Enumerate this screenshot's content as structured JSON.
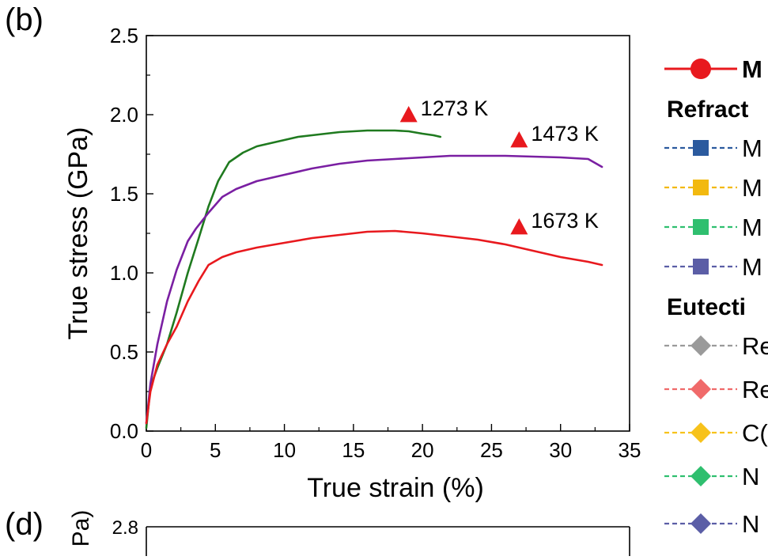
{
  "panel_b_label": "(b)",
  "panel_d_label": "(d)",
  "left_edge_tick": "0",
  "chart_data": {
    "type": "line",
    "title": "",
    "xlabel": "True strain (%)",
    "ylabel": "True stress (GPa)",
    "xlim": [
      0,
      35
    ],
    "ylim": [
      0,
      2.5
    ],
    "x_ticks": [
      "0",
      "5",
      "10",
      "15",
      "20",
      "25",
      "30",
      "35"
    ],
    "y_ticks": [
      "0.0",
      "0.5",
      "1.0",
      "1.5",
      "2.0",
      "2.5"
    ],
    "grid": false,
    "series": [
      {
        "name": "1273 K",
        "color": "#1f7a1f",
        "x": [
          0,
          0.3,
          0.8,
          1.5,
          2.2,
          3.0,
          3.8,
          4.5,
          5.2,
          6.0,
          7.0,
          8.0,
          9.0,
          10.0,
          11.0,
          12.0,
          13.0,
          14.0,
          15.0,
          16.0,
          17.0,
          18.0,
          19.0,
          20.0,
          20.8,
          21.3
        ],
        "y": [
          0.02,
          0.28,
          0.4,
          0.55,
          0.75,
          1.0,
          1.22,
          1.42,
          1.58,
          1.7,
          1.76,
          1.8,
          1.82,
          1.84,
          1.86,
          1.87,
          1.88,
          1.89,
          1.895,
          1.9,
          1.9,
          1.9,
          1.895,
          1.88,
          1.87,
          1.86
        ]
      },
      {
        "name": "1473 K",
        "color": "#7a1fa2",
        "x": [
          0,
          0.3,
          0.8,
          1.5,
          2.2,
          3.0,
          3.6,
          4.5,
          5.5,
          6.5,
          8.0,
          10.0,
          12.0,
          14.0,
          16.0,
          18.0,
          20.0,
          22.0,
          24.0,
          26.0,
          28.0,
          30.0,
          32.0,
          33.0
        ],
        "y": [
          0.05,
          0.3,
          0.55,
          0.82,
          1.02,
          1.2,
          1.28,
          1.38,
          1.48,
          1.53,
          1.58,
          1.62,
          1.66,
          1.69,
          1.71,
          1.72,
          1.73,
          1.74,
          1.74,
          1.74,
          1.735,
          1.73,
          1.72,
          1.67
        ]
      },
      {
        "name": "1673 K",
        "color": "#e8191e",
        "x": [
          0,
          0.3,
          0.8,
          1.5,
          2.2,
          3.0,
          3.8,
          4.5,
          5.5,
          6.5,
          8.0,
          10.0,
          12.0,
          14.0,
          16.0,
          18.0,
          20.0,
          22.0,
          24.0,
          26.0,
          28.0,
          30.0,
          32.0,
          33.0
        ],
        "y": [
          0.05,
          0.25,
          0.42,
          0.55,
          0.66,
          0.82,
          0.95,
          1.05,
          1.1,
          1.13,
          1.16,
          1.19,
          1.22,
          1.24,
          1.26,
          1.265,
          1.25,
          1.23,
          1.21,
          1.18,
          1.14,
          1.1,
          1.07,
          1.05
        ]
      }
    ],
    "annotations": [
      {
        "text": "1273 K",
        "marker_x": 19.0,
        "marker_y": 2.0
      },
      {
        "text": "1473 K",
        "marker_x": 27.0,
        "marker_y": 1.84
      },
      {
        "text": "1673 K",
        "marker_x": 27.0,
        "marker_y": 1.29
      }
    ],
    "marker_color": "#e8191e"
  },
  "lower_chart": {
    "ylabel_fragment": "Pa)",
    "y_tick_top": "2.8"
  },
  "legend": {
    "placement": "right (cropped)",
    "items": [
      {
        "kind": "entry",
        "label": "M",
        "marker": "circle",
        "color": "#e8191e",
        "dash": "solid",
        "bold": true
      },
      {
        "kind": "heading",
        "label": "Refract"
      },
      {
        "kind": "entry",
        "label": "M",
        "marker": "square",
        "color": "#2b5a9e",
        "dash": "dashed"
      },
      {
        "kind": "entry",
        "label": "M",
        "marker": "square",
        "color": "#f2b90f",
        "dash": "dashed"
      },
      {
        "kind": "entry",
        "label": "M",
        "marker": "square",
        "color": "#2fbf6f",
        "dash": "dashed"
      },
      {
        "kind": "entry",
        "label": "M",
        "marker": "square",
        "color": "#5b5ea6",
        "dash": "dashed"
      },
      {
        "kind": "heading",
        "label": "Eutecti"
      },
      {
        "kind": "entry",
        "label": "Re",
        "marker": "diamond",
        "color": "#9a9a9a",
        "dash": "dashed"
      },
      {
        "kind": "entry",
        "label": "Re",
        "marker": "diamond",
        "color": "#f06a6a",
        "dash": "dashed"
      },
      {
        "kind": "entry",
        "label": "C(",
        "marker": "diamond",
        "color": "#f7c21b",
        "dash": "dashed"
      },
      {
        "kind": "entry",
        "label": "N",
        "marker": "diamond",
        "color": "#2fbf6f",
        "dash": "dashed"
      },
      {
        "kind": "entry",
        "label": "N",
        "marker": "diamond",
        "color": "#5b5ea6",
        "dash": "dashed"
      }
    ]
  }
}
